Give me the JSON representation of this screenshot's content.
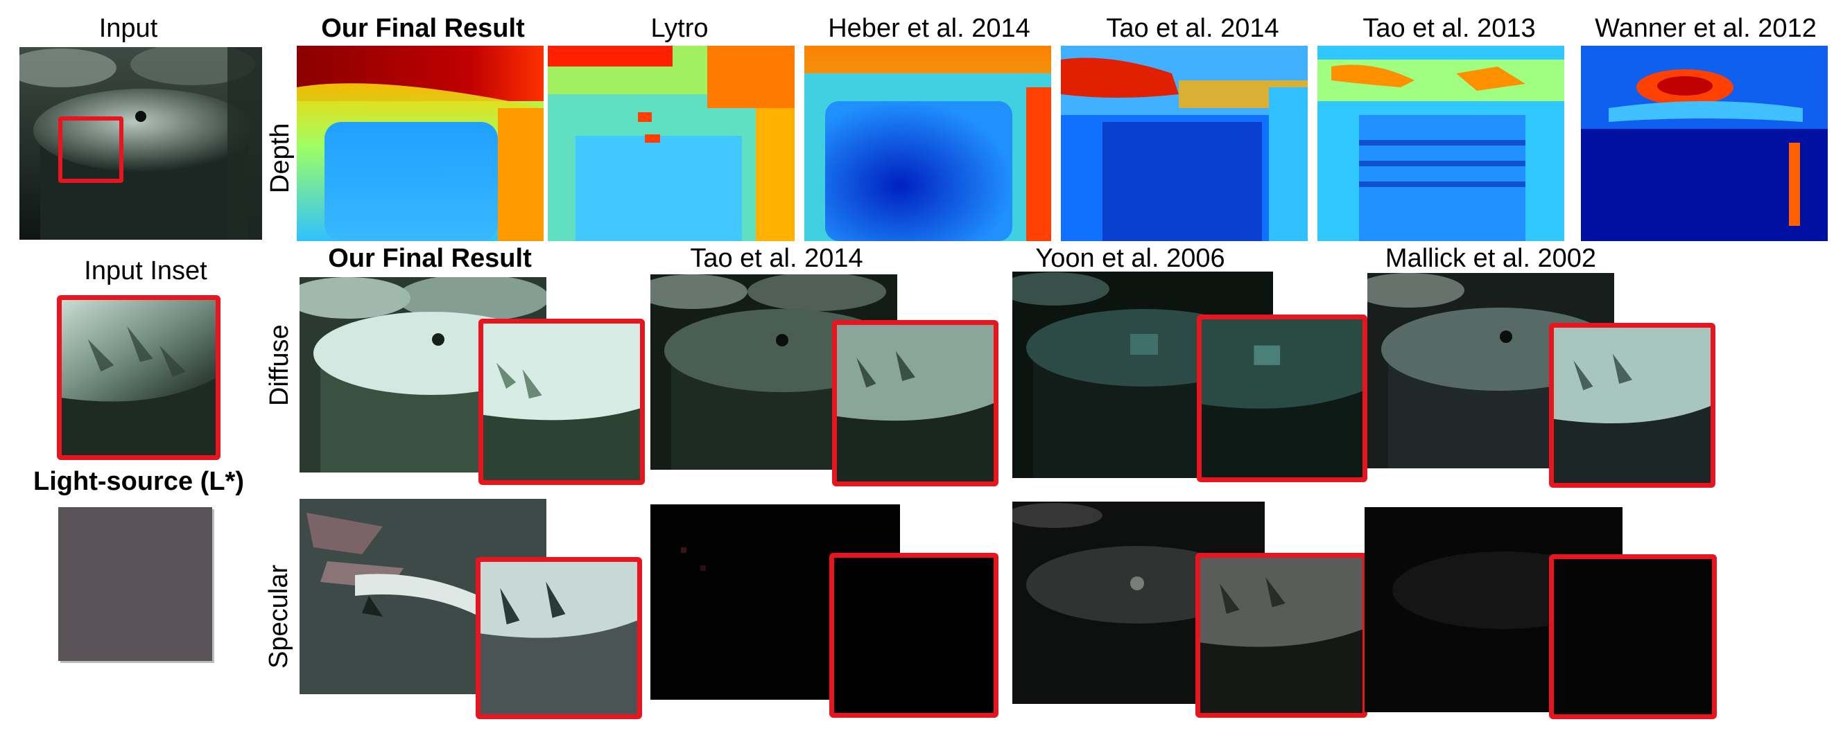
{
  "input": {
    "title": "Input",
    "inset_title": "Input Inset",
    "light_source_title": "Light-source (L*)",
    "light_source_color": "#5a5458"
  },
  "depth_row": {
    "row_label": "Depth",
    "methods": [
      "Our Final Result",
      "Lytro",
      "Heber et al. 2014",
      "Tao et al. 2014",
      "Tao et al. 2013",
      "Wanner et al. 2012"
    ]
  },
  "diffuse_row": {
    "row_label": "Diffuse",
    "methods": [
      "Our Final Result",
      "Tao et al. 2014",
      "Yoon et al. 2006",
      "Mallick et al. 2002"
    ]
  },
  "specular_row": {
    "row_label": "Specular"
  },
  "colors": {
    "inset_border": "#e8141e"
  }
}
